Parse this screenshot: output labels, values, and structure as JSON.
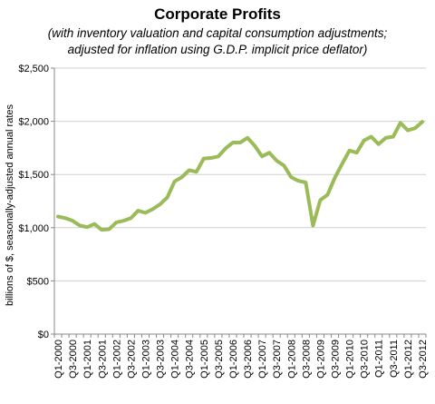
{
  "chart_data": {
    "type": "line",
    "title": "Corporate Profits",
    "subtitle_line1": "(with inventory valuation and capital consumption adjustments;",
    "subtitle_line2": "adjusted for inflation using G.D.P. implicit price deflator)",
    "xlabel": "",
    "ylabel": "billions of $, seasonally-adjusted annual rates",
    "ylim": [
      0,
      2500
    ],
    "yticks": [
      0,
      500,
      1000,
      1500,
      2000,
      2500
    ],
    "ytick_labels": [
      "$0",
      "$500",
      "$1,000",
      "$1,500",
      "$2,000",
      "$2,500"
    ],
    "grid": "horizontal",
    "line_color": "#9bbb59",
    "xtick_labels": [
      "Q1-2000",
      "Q3-2000",
      "Q1-2001",
      "Q3-2001",
      "Q1-2002",
      "Q3-2002",
      "Q1-2003",
      "Q3-2003",
      "Q1-2004",
      "Q3-2004",
      "Q1-2005",
      "Q3-2005",
      "Q1-2006",
      "Q3-2006",
      "Q1-2007",
      "Q3-2007",
      "Q1-2008",
      "Q3-2008",
      "Q1-2009",
      "Q3-2009",
      "Q1-2010",
      "Q3-2010",
      "Q1-2011",
      "Q3-2011",
      "Q1-2012",
      "Q3-2012"
    ],
    "series": [
      {
        "values": [
          1105,
          1090,
          1065,
          1020,
          1005,
          1035,
          980,
          985,
          1050,
          1065,
          1090,
          1160,
          1140,
          1175,
          1220,
          1285,
          1435,
          1475,
          1540,
          1525,
          1650,
          1655,
          1670,
          1745,
          1800,
          1800,
          1845,
          1770,
          1670,
          1705,
          1630,
          1585,
          1475,
          1440,
          1425,
          1020,
          1260,
          1310,
          1470,
          1600,
          1725,
          1705,
          1820,
          1855,
          1785,
          1845,
          1855,
          1985,
          1915,
          1935,
          1995
        ]
      }
    ]
  }
}
